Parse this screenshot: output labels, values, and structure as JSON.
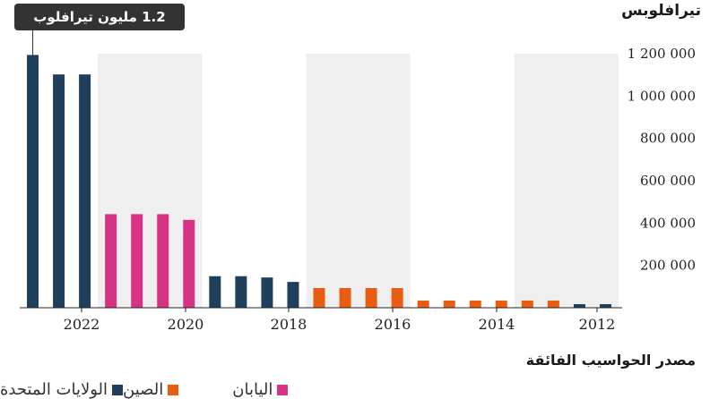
{
  "chart_data": {
    "type": "bar",
    "title": "",
    "ylabel": "تيرافلوبس",
    "ylim": [
      0,
      1200000
    ],
    "yticks": [
      "1 200 000",
      "1 000 000",
      "800 000",
      "600 000",
      "400 000",
      "200 000"
    ],
    "ytick_values": [
      1200000,
      1000000,
      800000,
      600000,
      400000,
      200000
    ],
    "xticks": [
      "2022",
      "2020",
      "2018",
      "2016",
      "2014",
      "2012"
    ],
    "callout": "1.2 مليون تيرافلوب",
    "bars": [
      {
        "value": 1194000,
        "series": "الولايات المتحدة"
      },
      {
        "value": 1102000,
        "series": "الولايات المتحدة"
      },
      {
        "value": 1102000,
        "series": "الولايات المتحدة"
      },
      {
        "value": 442000,
        "series": "اليابان"
      },
      {
        "value": 442000,
        "series": "اليابان"
      },
      {
        "value": 442000,
        "series": "اليابان"
      },
      {
        "value": 415000,
        "series": "اليابان"
      },
      {
        "value": 149000,
        "series": "الولايات المتحدة"
      },
      {
        "value": 149000,
        "series": "الولايات المتحدة"
      },
      {
        "value": 143000,
        "series": "الولايات المتحدة"
      },
      {
        "value": 122000,
        "series": "الولايات المتحدة"
      },
      {
        "value": 93000,
        "series": "الصين"
      },
      {
        "value": 93000,
        "series": "الصين"
      },
      {
        "value": 93000,
        "series": "الصين"
      },
      {
        "value": 93000,
        "series": "الصين"
      },
      {
        "value": 34000,
        "series": "الصين"
      },
      {
        "value": 34000,
        "series": "الصين"
      },
      {
        "value": 34000,
        "series": "الصين"
      },
      {
        "value": 34000,
        "series": "الصين"
      },
      {
        "value": 34000,
        "series": "الصين"
      },
      {
        "value": 34000,
        "series": "الصين"
      },
      {
        "value": 17000,
        "series": "الولايات المتحدة"
      },
      {
        "value": 17000,
        "series": "الولايات المتحدة"
      }
    ],
    "legend_title": "مصدر الحواسيب الفائقة",
    "legend": [
      {
        "name": "الولايات المتحدة",
        "color": "#1f3f5b"
      },
      {
        "name": "الصين",
        "color": "#e85d12"
      },
      {
        "name": "اليابان",
        "color": "#d63384"
      }
    ],
    "colors": {
      "الولايات المتحدة": "#1f3f5b",
      "الصين": "#e85d12",
      "اليابان": "#d63384",
      "band": "#efefef"
    },
    "grid": false,
    "legend_position": "bottom"
  }
}
